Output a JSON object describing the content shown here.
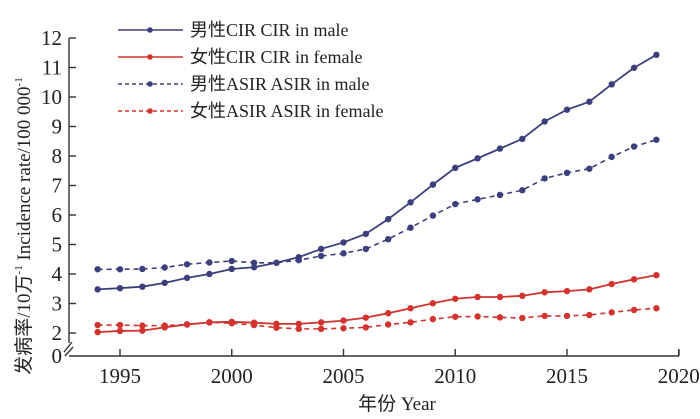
{
  "chart_data": {
    "type": "line",
    "title": "",
    "xlabel": "年份 Year",
    "ylabel": "发病率/10万⁻¹ Incidence rate/100 000⁻¹",
    "xlim": [
      1992.3,
      2020
    ],
    "ylim": [
      0,
      12
    ],
    "y_axis_break": true,
    "y_break_between": [
      0,
      2
    ],
    "xticks": [
      1995,
      2000,
      2005,
      2010,
      2015,
      2020
    ],
    "yticks": [
      0,
      2,
      3,
      4,
      5,
      6,
      7,
      8,
      9,
      10,
      11,
      12
    ],
    "grid": false,
    "legend_position": "top-left",
    "x": [
      1994,
      1995,
      1996,
      1997,
      1998,
      1999,
      2000,
      2001,
      2002,
      2003,
      2004,
      2005,
      2006,
      2007,
      2008,
      2009,
      2010,
      2011,
      2012,
      2013,
      2014,
      2015,
      2016,
      2017,
      2018,
      2019
    ],
    "series": [
      {
        "name": "男性CIR CIR in male",
        "color": "#3b3f7c",
        "style": "solid",
        "values": [
          3.48,
          3.52,
          3.57,
          3.7,
          3.87,
          4.0,
          4.17,
          4.23,
          4.38,
          4.57,
          4.85,
          5.07,
          5.36,
          5.86,
          6.43,
          7.03,
          7.6,
          7.92,
          8.25,
          8.58,
          9.17,
          9.57,
          9.84,
          10.43,
          10.99,
          11.43
        ]
      },
      {
        "name": "女性CIR CIR in female",
        "color": "#d2332f",
        "style": "solid",
        "values": [
          2.03,
          2.07,
          2.08,
          2.19,
          2.29,
          2.36,
          2.38,
          2.35,
          2.31,
          2.31,
          2.36,
          2.42,
          2.52,
          2.67,
          2.84,
          3.01,
          3.16,
          3.22,
          3.22,
          3.26,
          3.38,
          3.42,
          3.48,
          3.66,
          3.82,
          3.96
        ]
      },
      {
        "name": "男性ASIR ASIR in male",
        "color": "#3b3f7c",
        "style": "dashed",
        "values": [
          4.16,
          4.16,
          4.17,
          4.22,
          4.33,
          4.39,
          4.44,
          4.38,
          4.38,
          4.47,
          4.61,
          4.7,
          4.85,
          5.18,
          5.57,
          5.98,
          6.37,
          6.53,
          6.68,
          6.84,
          7.24,
          7.43,
          7.57,
          7.97,
          8.32,
          8.55
        ]
      },
      {
        "name": "女性ASIR ASIR in female",
        "color": "#d2332f",
        "style": "dashed",
        "values": [
          2.27,
          2.27,
          2.25,
          2.25,
          2.29,
          2.36,
          2.33,
          2.27,
          2.18,
          2.14,
          2.14,
          2.16,
          2.19,
          2.29,
          2.36,
          2.47,
          2.55,
          2.56,
          2.53,
          2.51,
          2.58,
          2.58,
          2.61,
          2.7,
          2.78,
          2.84
        ]
      }
    ]
  },
  "axis": {
    "xlabel": "年份 Year",
    "ylabel_cn": "发病率/10万",
    "ylabel_en": "Incidence rate/100 000",
    "ylabel_sup": "-1"
  }
}
